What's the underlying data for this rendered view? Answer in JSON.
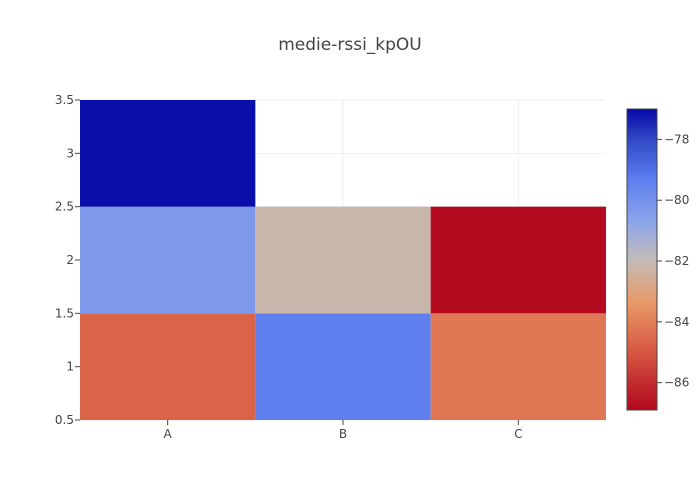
{
  "chart_data": {
    "type": "heatmap",
    "title": "medie-rssi_kpOU",
    "xlabel": "",
    "ylabel": "",
    "x_categories": [
      "A",
      "B",
      "C"
    ],
    "y_values": [
      1,
      2,
      3
    ],
    "ylim": [
      0.5,
      3.5
    ],
    "y_ticks": [
      0.5,
      1,
      1.5,
      2,
      2.5,
      3,
      3.5
    ],
    "cells": [
      {
        "x": "A",
        "y": 1,
        "value": -84.7
      },
      {
        "x": "B",
        "y": 1,
        "value": -79.4
      },
      {
        "x": "C",
        "y": 1,
        "value": -84.2
      },
      {
        "x": "A",
        "y": 2,
        "value": -80.3
      },
      {
        "x": "B",
        "y": 2,
        "value": -82.2
      },
      {
        "x": "C",
        "y": 2,
        "value": -86.8
      },
      {
        "x": "A",
        "y": 3,
        "value": -77.1
      }
    ],
    "colorscale": {
      "name": "RdBu-like (red low, blue high)",
      "range": [
        -86.9,
        -77.0
      ],
      "ticks": [
        -78,
        -80,
        -82,
        -84,
        -86
      ],
      "stops": [
        {
          "t": 0.0,
          "color": "#b2071f"
        },
        {
          "t": 0.21,
          "color": "#d95e45"
        },
        {
          "t": 0.36,
          "color": "#e89a69"
        },
        {
          "t": 0.5,
          "color": "#c2bcb8"
        },
        {
          "t": 0.62,
          "color": "#8da6e8"
        },
        {
          "t": 0.77,
          "color": "#5c7cf0"
        },
        {
          "t": 0.9,
          "color": "#3048c4"
        },
        {
          "t": 1.0,
          "color": "#0608a8"
        }
      ]
    }
  }
}
